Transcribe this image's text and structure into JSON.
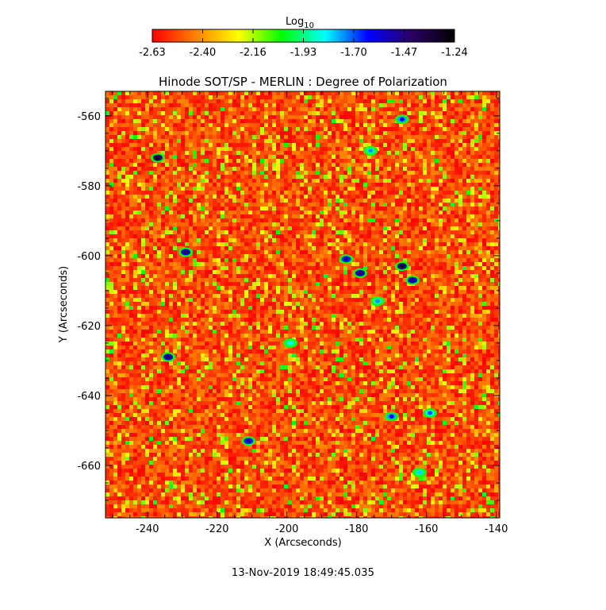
{
  "colors": {
    "background": "#ffffff",
    "axis": "#000000",
    "colormap_stops": [
      "#ff0000",
      "#ff8000",
      "#ffff00",
      "#00ff00",
      "#00ffff",
      "#0000ff",
      "#2a0066",
      "#000000"
    ]
  },
  "colorbar": {
    "label": "Log",
    "label_subscript": "10",
    "ticks": [
      "-2.63",
      "-2.40",
      "-2.16",
      "-1.93",
      "-1.70",
      "-1.47",
      "-1.24"
    ],
    "range": [
      -2.63,
      -1.24
    ]
  },
  "chart_data": {
    "type": "heatmap",
    "title": "Hinode SOT/SP - MERLIN : Degree of Polarization",
    "xlabel": "X (Arcseconds)",
    "ylabel": "Y (Arcseconds)",
    "xlim": [
      -252,
      -139
    ],
    "ylim": [
      -675,
      -553
    ],
    "xticks": [
      -240,
      -220,
      -200,
      -180,
      -160,
      -140
    ],
    "yticks": [
      -560,
      -580,
      -600,
      -620,
      -640,
      -660
    ],
    "value_range": [
      -2.63,
      -1.24
    ],
    "colorscale": "rainbow (red = low, black = high)",
    "grid": false,
    "notable_high_polarization_patches": [
      {
        "x": -237,
        "y": -572,
        "value": -1.3
      },
      {
        "x": -229,
        "y": -599,
        "value": -1.45
      },
      {
        "x": -234,
        "y": -629,
        "value": -1.4
      },
      {
        "x": -211,
        "y": -653,
        "value": -1.5
      },
      {
        "x": -183,
        "y": -601,
        "value": -1.5
      },
      {
        "x": -179,
        "y": -605,
        "value": -1.4
      },
      {
        "x": -167,
        "y": -603,
        "value": -1.35
      },
      {
        "x": -164,
        "y": -607,
        "value": -1.45
      },
      {
        "x": -174,
        "y": -613,
        "value": -1.75
      },
      {
        "x": -170,
        "y": -646,
        "value": -1.6
      },
      {
        "x": -159,
        "y": -645,
        "value": -1.7
      },
      {
        "x": -162,
        "y": -662,
        "value": -1.8
      },
      {
        "x": -176,
        "y": -570,
        "value": -1.75
      },
      {
        "x": -167,
        "y": -561,
        "value": -1.6
      },
      {
        "x": -199,
        "y": -625,
        "value": -1.85
      }
    ]
  },
  "timestamp": "13-Nov-2019 18:49:45.035"
}
